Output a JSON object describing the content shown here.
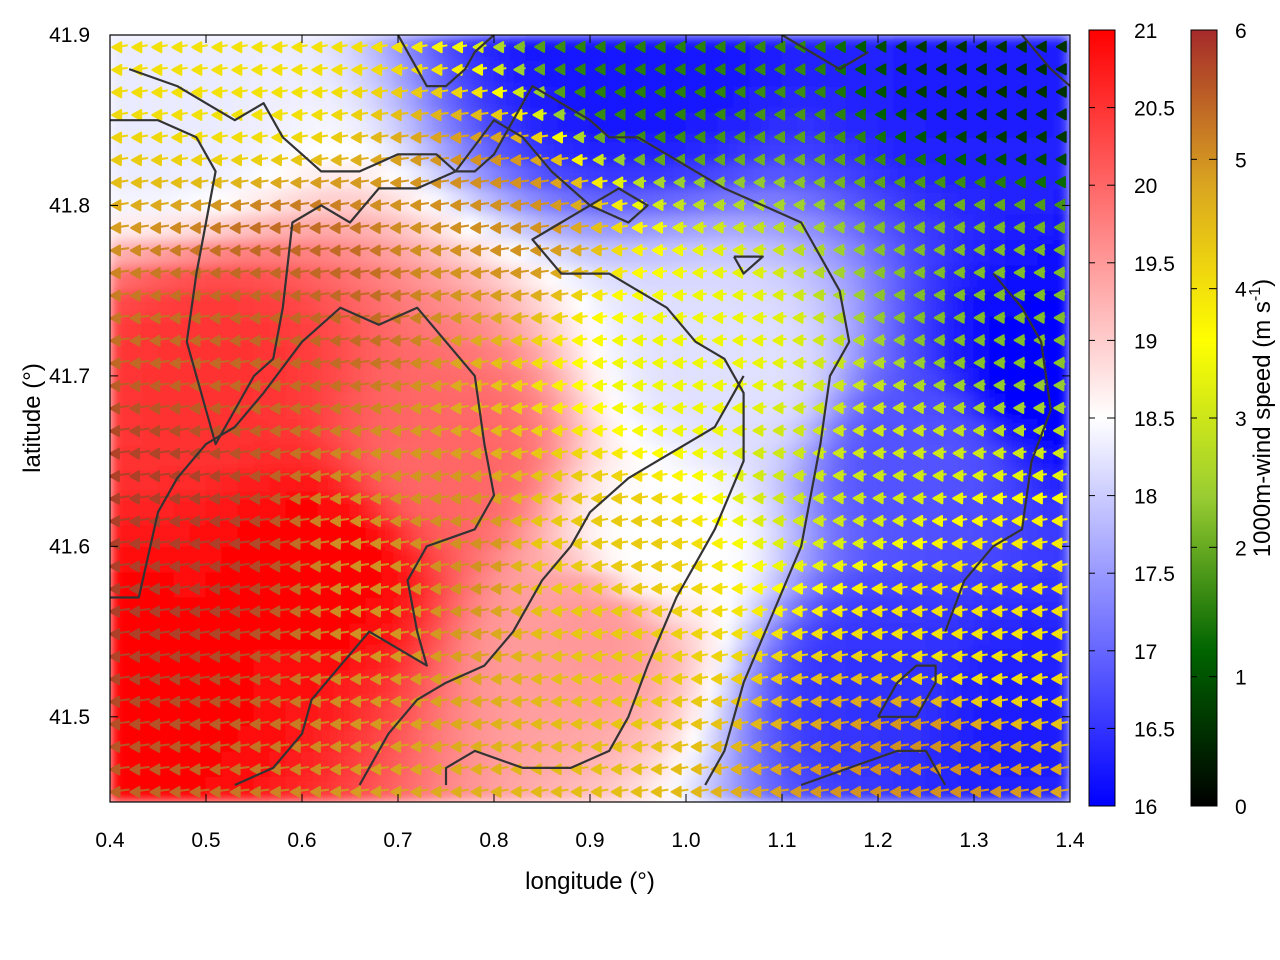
{
  "chart_data": {
    "type": "heatmap",
    "title": "",
    "xlabel": "longitude (°)",
    "ylabel": "latitude (°)",
    "xlim": [
      0.4,
      1.4
    ],
    "ylim": [
      41.45,
      41.9
    ],
    "xticks": [
      "0.4",
      "0.5",
      "0.6",
      "0.7",
      "0.8",
      "0.9",
      "1.0",
      "1.1",
      "1.2",
      "1.3",
      "1.4"
    ],
    "yticks": [
      "41.5",
      "41.6",
      "41.7",
      "41.8",
      "41.9"
    ],
    "grid": false,
    "colorbars": [
      {
        "quantity": "temperature",
        "label": "",
        "range": [
          16,
          21
        ],
        "ticks": [
          "16",
          "16.5",
          "17",
          "17.5",
          "18",
          "18.5",
          "19",
          "19.5",
          "20",
          "20.5",
          "21"
        ],
        "colors": [
          "#0000ff",
          "#ffffff",
          "#ff0000"
        ]
      },
      {
        "quantity": "wind speed",
        "label": "1000m-wind speed (m s",
        "label_sup": "-1",
        "label_tail": ")",
        "range": [
          0,
          6
        ],
        "ticks": [
          "0",
          "1",
          "2",
          "3",
          "4",
          "5",
          "6"
        ],
        "colors": [
          "#000000",
          "#006400",
          "#9acd32",
          "#ffff00",
          "#daa520",
          "#a52a2a"
        ]
      }
    ],
    "temperature_field": {
      "description_hotspots": [
        {
          "lon": 0.42,
          "lat": 41.52,
          "value": 21
        },
        {
          "lon": 0.62,
          "lat": 41.59,
          "value": 21
        },
        {
          "lon": 0.5,
          "lat": 41.7,
          "value": 20.5
        },
        {
          "lon": 0.75,
          "lat": 41.65,
          "value": 20
        },
        {
          "lon": 0.9,
          "lat": 41.55,
          "value": 19.5
        },
        {
          "lon": 0.45,
          "lat": 41.85,
          "value": 18.3
        },
        {
          "lon": 0.97,
          "lat": 41.6,
          "value": 18.5
        },
        {
          "lon": 1.05,
          "lat": 41.7,
          "value": 18.2
        },
        {
          "lon": 1.25,
          "lat": 41.65,
          "value": 16.8
        },
        {
          "lon": 1.38,
          "lat": 41.7,
          "value": 16.0
        },
        {
          "lon": 1.3,
          "lat": 41.88,
          "value": 16.3
        },
        {
          "lon": 0.95,
          "lat": 41.89,
          "value": 16.2
        },
        {
          "lon": 1.2,
          "lat": 41.52,
          "value": 16.5
        },
        {
          "lon": 1.35,
          "lat": 41.5,
          "value": 16.3
        }
      ]
    },
    "wind_field": {
      "direction": "westward arrows, colored by speed",
      "speed_samples": [
        {
          "lon": 0.45,
          "lat": 41.6,
          "value": 5.8
        },
        {
          "lon": 0.6,
          "lat": 41.75,
          "value": 5.4
        },
        {
          "lon": 0.8,
          "lat": 41.8,
          "value": 5.0
        },
        {
          "lon": 0.75,
          "lat": 41.6,
          "value": 5.0
        },
        {
          "lon": 0.9,
          "lat": 41.6,
          "value": 4.3
        },
        {
          "lon": 1.0,
          "lat": 41.7,
          "value": 3.4
        },
        {
          "lon": 1.15,
          "lat": 41.65,
          "value": 3.0
        },
        {
          "lon": 1.3,
          "lat": 41.75,
          "value": 2.2
        },
        {
          "lon": 1.35,
          "lat": 41.88,
          "value": 0.6
        },
        {
          "lon": 0.95,
          "lat": 41.88,
          "value": 1.5
        },
        {
          "lon": 1.3,
          "lat": 41.55,
          "value": 4.0
        },
        {
          "lon": 1.25,
          "lat": 41.47,
          "value": 5.0
        },
        {
          "lon": 0.55,
          "lat": 41.88,
          "value": 4.0
        }
      ]
    },
    "contours": {
      "color": "#333333",
      "lines": [
        [
          [
            0.42,
            41.88
          ],
          [
            0.47,
            41.87
          ],
          [
            0.5,
            41.86
          ],
          [
            0.53,
            41.85
          ],
          [
            0.56,
            41.86
          ],
          [
            0.58,
            41.84
          ],
          [
            0.6,
            41.83
          ],
          [
            0.62,
            41.82
          ],
          [
            0.66,
            41.82
          ],
          [
            0.7,
            41.83
          ],
          [
            0.74,
            41.83
          ],
          [
            0.76,
            41.82
          ],
          [
            0.78,
            41.82
          ],
          [
            0.8,
            41.83
          ],
          [
            0.84,
            41.87
          ],
          [
            0.87,
            41.86
          ],
          [
            0.9,
            41.85
          ],
          [
            0.92,
            41.84
          ],
          [
            0.95,
            41.84
          ],
          [
            0.98,
            41.83
          ],
          [
            1.01,
            41.82
          ],
          [
            1.04,
            41.81
          ],
          [
            1.08,
            41.8
          ],
          [
            1.12,
            41.79
          ],
          [
            1.14,
            41.77
          ],
          [
            1.16,
            41.75
          ],
          [
            1.17,
            41.72
          ],
          [
            1.15,
            41.7
          ],
          [
            1.14,
            41.66
          ],
          [
            1.12,
            41.6
          ],
          [
            1.09,
            41.56
          ],
          [
            1.06,
            41.52
          ],
          [
            1.04,
            41.48
          ],
          [
            1.02,
            41.46
          ]
        ],
        [
          [
            0.4,
            41.85
          ],
          [
            0.45,
            41.85
          ],
          [
            0.49,
            41.84
          ],
          [
            0.51,
            41.82
          ],
          [
            0.5,
            41.79
          ],
          [
            0.49,
            41.76
          ],
          [
            0.48,
            41.72
          ],
          [
            0.5,
            41.68
          ],
          [
            0.51,
            41.66
          ],
          [
            0.53,
            41.68
          ],
          [
            0.55,
            41.7
          ],
          [
            0.57,
            41.71
          ],
          [
            0.58,
            41.74
          ],
          [
            0.59,
            41.79
          ],
          [
            0.62,
            41.8
          ],
          [
            0.65,
            41.79
          ],
          [
            0.68,
            41.81
          ],
          [
            0.72,
            41.81
          ],
          [
            0.76,
            41.82
          ],
          [
            0.8,
            41.85
          ],
          [
            0.83,
            41.84
          ],
          [
            0.86,
            41.82
          ],
          [
            0.9,
            41.8
          ],
          [
            0.94,
            41.79
          ],
          [
            0.96,
            41.8
          ],
          [
            0.93,
            41.81
          ],
          [
            0.9,
            41.8
          ],
          [
            0.87,
            41.79
          ],
          [
            0.84,
            41.78
          ],
          [
            0.87,
            41.76
          ],
          [
            0.92,
            41.76
          ],
          [
            0.95,
            41.75
          ],
          [
            0.98,
            41.74
          ],
          [
            1.01,
            41.72
          ],
          [
            1.04,
            41.71
          ],
          [
            1.06,
            41.69
          ],
          [
            1.06,
            41.65
          ],
          [
            1.03,
            41.61
          ],
          [
            0.99,
            41.57
          ],
          [
            0.96,
            41.53
          ],
          [
            0.94,
            41.5
          ],
          [
            0.92,
            41.48
          ],
          [
            0.88,
            41.47
          ],
          [
            0.83,
            41.47
          ],
          [
            0.78,
            41.48
          ],
          [
            0.75,
            41.47
          ],
          [
            0.75,
            41.46
          ]
        ],
        [
          [
            0.4,
            41.57
          ],
          [
            0.43,
            41.57
          ],
          [
            0.45,
            41.62
          ],
          [
            0.47,
            41.64
          ],
          [
            0.5,
            41.66
          ],
          [
            0.53,
            41.67
          ],
          [
            0.56,
            41.69
          ],
          [
            0.6,
            41.72
          ],
          [
            0.64,
            41.74
          ],
          [
            0.68,
            41.73
          ],
          [
            0.72,
            41.74
          ],
          [
            0.75,
            41.72
          ],
          [
            0.78,
            41.7
          ],
          [
            0.79,
            41.66
          ],
          [
            0.8,
            41.63
          ],
          [
            0.78,
            41.61
          ],
          [
            0.73,
            41.6
          ],
          [
            0.71,
            41.58
          ],
          [
            0.72,
            41.55
          ],
          [
            0.73,
            41.53
          ],
          [
            0.7,
            41.54
          ],
          [
            0.67,
            41.55
          ],
          [
            0.64,
            41.53
          ],
          [
            0.61,
            41.51
          ],
          [
            0.6,
            41.49
          ],
          [
            0.57,
            41.47
          ],
          [
            0.53,
            41.46
          ]
        ],
        [
          [
            0.66,
            41.46
          ],
          [
            0.69,
            41.49
          ],
          [
            0.72,
            41.51
          ],
          [
            0.75,
            41.52
          ],
          [
            0.79,
            41.53
          ],
          [
            0.82,
            41.55
          ],
          [
            0.85,
            41.58
          ],
          [
            0.88,
            41.6
          ],
          [
            0.9,
            41.62
          ],
          [
            0.94,
            41.64
          ],
          [
            0.97,
            41.65
          ],
          [
            1.0,
            41.66
          ],
          [
            1.03,
            41.67
          ],
          [
            1.05,
            41.69
          ],
          [
            1.06,
            41.7
          ]
        ],
        [
          [
            1.05,
            41.77
          ],
          [
            1.07,
            41.77
          ],
          [
            1.08,
            41.77
          ],
          [
            1.06,
            41.76
          ],
          [
            1.05,
            41.77
          ]
        ],
        [
          [
            1.2,
            41.5
          ],
          [
            1.24,
            41.5
          ],
          [
            1.26,
            41.52
          ],
          [
            1.26,
            41.53
          ],
          [
            1.24,
            41.53
          ],
          [
            1.22,
            41.52
          ],
          [
            1.2,
            41.5
          ]
        ],
        [
          [
            1.12,
            41.46
          ],
          [
            1.17,
            41.47
          ],
          [
            1.22,
            41.48
          ],
          [
            1.25,
            41.48
          ],
          [
            1.27,
            41.46
          ]
        ],
        [
          [
            0.7,
            41.9
          ],
          [
            0.72,
            41.88
          ],
          [
            0.73,
            41.87
          ],
          [
            0.75,
            41.87
          ],
          [
            0.77,
            41.88
          ],
          [
            0.78,
            41.89
          ],
          [
            0.8,
            41.9
          ]
        ],
        [
          [
            1.1,
            41.9
          ],
          [
            1.13,
            41.89
          ],
          [
            1.16,
            41.88
          ],
          [
            1.19,
            41.89
          ]
        ],
        [
          [
            1.35,
            41.9
          ],
          [
            1.38,
            41.88
          ],
          [
            1.4,
            41.87
          ]
        ],
        [
          [
            1.32,
            41.76
          ],
          [
            1.35,
            41.74
          ],
          [
            1.37,
            41.72
          ],
          [
            1.38,
            41.68
          ],
          [
            1.36,
            41.65
          ],
          [
            1.35,
            41.61
          ],
          [
            1.32,
            41.6
          ],
          [
            1.29,
            41.58
          ],
          [
            1.27,
            41.55
          ]
        ]
      ]
    }
  }
}
